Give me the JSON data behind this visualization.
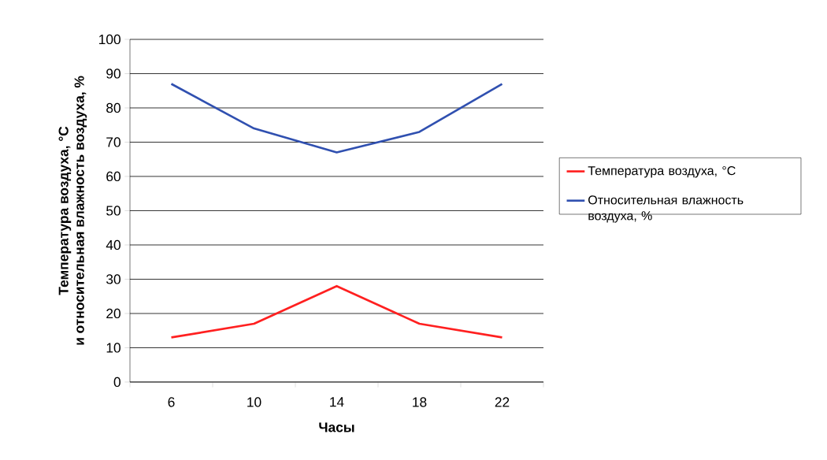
{
  "chart_data": {
    "type": "line",
    "xlabel": "Часы",
    "ylabel": "Температура воздуха, °C\nи относительная влажность воздуха, %",
    "categories": [
      "6",
      "10",
      "14",
      "18",
      "22"
    ],
    "series": [
      {
        "name": "Температура воздуха, °C",
        "color": "#ff2020",
        "values": [
          13,
          17,
          28,
          17,
          13
        ]
      },
      {
        "name": "Относительная влажность воздуха, %",
        "color": "#3050b0",
        "values": [
          87,
          74,
          67,
          73,
          87
        ]
      }
    ],
    "ylim": [
      0,
      100
    ],
    "yticks": [
      0,
      10,
      20,
      30,
      40,
      50,
      60,
      70,
      80,
      90,
      100
    ],
    "grid": "y",
    "legend": "right",
    "marker": "none",
    "line_style": "solid"
  }
}
